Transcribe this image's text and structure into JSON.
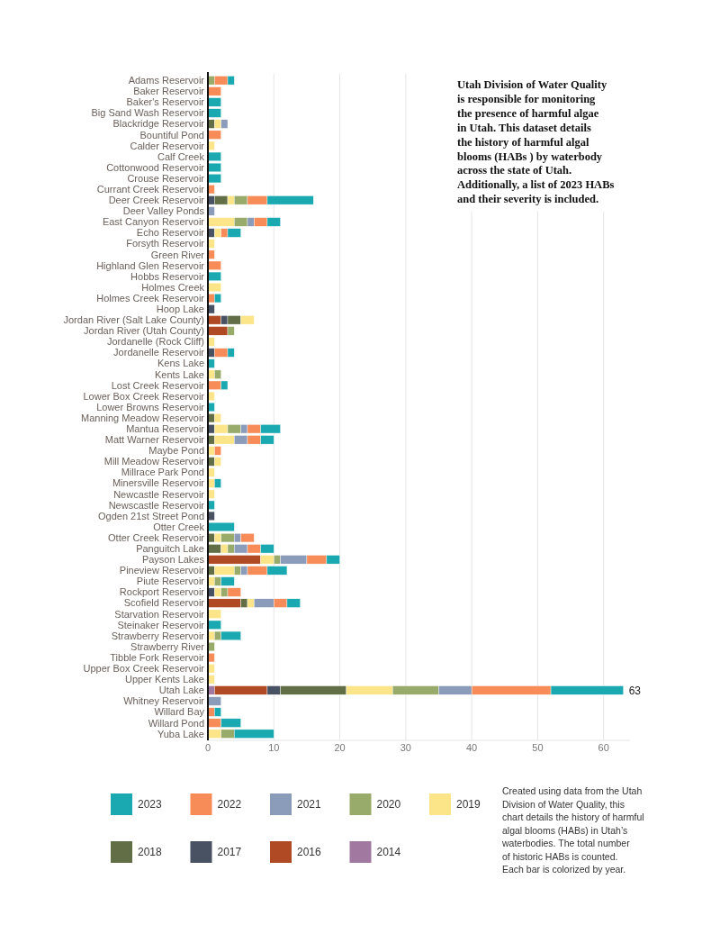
{
  "chart_data": {
    "type": "bar",
    "orientation": "horizontal",
    "stacked": true,
    "categories": [
      "Adams Reservoir",
      "Baker Reservoir",
      "Baker's Reservoir",
      "Big Sand Wash Reservoir",
      "Blackridge Reservoir",
      "Bountiful Pond",
      "Calder Reservoir",
      "Calf Creek",
      "Cottonwood Reservoir",
      "Crouse Reservoir",
      "Currant Creek Reservoir",
      "Deer Creek Reservoir",
      "Deer Valley Ponds",
      "East Canyon Reservoir",
      "Echo Reservoir",
      "Forsyth Reservoir",
      "Green River",
      "Highland Glen Reservoir",
      "Hobbs Reservoir",
      "Holmes Creek",
      "Holmes Creek Reservoir",
      "Hoop Lake",
      "Jordan River (Salt Lake County)",
      "Jordan River (Utah County)",
      "Jordanelle (Rock Cliff)",
      "Jordanelle Reservoir",
      "Kens Lake",
      "Kents Lake",
      "Lost Creek Reservoir",
      "Lower Box Creek Reservoir",
      "Lower Browns Reservoir",
      "Manning Meadow Reservoir",
      "Mantua Reservoir",
      "Matt Warner Reservoir",
      "Maybe Pond",
      "Mill Meadow Reservoir",
      "Millrace Park Pond",
      "Minersville Reservoir",
      "Newcastle Reservoir",
      "Newscastle Reservoir",
      "Ogden 21st Street Pond",
      "Otter Creek",
      "Otter Creek Reservoir",
      "Panguitch Lake",
      "Payson Lakes",
      "Pineview Reservoir",
      "Piute Reservoir",
      "Rockport Reservoir",
      "Scofield Reservoir",
      "Starvation Reservoir",
      "Steinaker Reservoir",
      "Strawberry Reservoir",
      "Strawberry River",
      "Tibble Fork Reservoir",
      "Upper Box Creek Reservoir",
      "Upper Kents Lake",
      "Utah Lake",
      "Whitney Reservoir",
      "Willard Bay",
      "Willard Pond",
      "Yuba Lake"
    ],
    "series": [
      {
        "name": "2014",
        "color": "#a178a0",
        "values": [
          null,
          null,
          null,
          null,
          null,
          null,
          null,
          null,
          null,
          null,
          null,
          null,
          null,
          null,
          null,
          null,
          null,
          null,
          null,
          null,
          null,
          null,
          null,
          null,
          null,
          null,
          null,
          null,
          null,
          null,
          null,
          null,
          null,
          null,
          null,
          null,
          null,
          null,
          null,
          null,
          null,
          null,
          null,
          null,
          null,
          null,
          null,
          null,
          null,
          null,
          null,
          null,
          null,
          null,
          null,
          null,
          1,
          null,
          null,
          null,
          null
        ]
      },
      {
        "name": "2016",
        "color": "#b04a24",
        "values": [
          null,
          null,
          null,
          null,
          null,
          null,
          null,
          null,
          null,
          null,
          null,
          null,
          null,
          null,
          null,
          null,
          null,
          null,
          null,
          null,
          null,
          null,
          2,
          3,
          null,
          null,
          null,
          null,
          null,
          null,
          null,
          null,
          null,
          null,
          null,
          null,
          null,
          null,
          null,
          null,
          null,
          null,
          null,
          null,
          8,
          null,
          null,
          null,
          5,
          null,
          null,
          null,
          null,
          null,
          null,
          null,
          8,
          null,
          null,
          null,
          null
        ]
      },
      {
        "name": "2017",
        "color": "#485263",
        "values": [
          null,
          null,
          null,
          null,
          null,
          null,
          null,
          null,
          null,
          null,
          null,
          1,
          null,
          null,
          1,
          null,
          null,
          null,
          null,
          null,
          null,
          1,
          1,
          null,
          null,
          1,
          null,
          null,
          null,
          null,
          null,
          null,
          1,
          null,
          null,
          null,
          null,
          null,
          null,
          null,
          1,
          null,
          null,
          null,
          null,
          null,
          null,
          1,
          null,
          null,
          null,
          null,
          null,
          null,
          null,
          null,
          2,
          null,
          null,
          null,
          null
        ]
      },
      {
        "name": "2018",
        "color": "#626e46",
        "values": [
          null,
          null,
          null,
          null,
          1,
          null,
          null,
          null,
          null,
          null,
          null,
          2,
          null,
          null,
          null,
          null,
          null,
          null,
          null,
          null,
          null,
          null,
          2,
          null,
          null,
          null,
          null,
          null,
          null,
          null,
          null,
          1,
          null,
          1,
          null,
          1,
          null,
          null,
          null,
          null,
          null,
          null,
          1,
          2,
          null,
          1,
          null,
          null,
          1,
          null,
          null,
          null,
          null,
          null,
          null,
          null,
          10,
          null,
          null,
          null,
          null
        ]
      },
      {
        "name": "2019",
        "color": "#fce588",
        "values": [
          null,
          null,
          null,
          null,
          1,
          null,
          1,
          null,
          null,
          null,
          null,
          1,
          null,
          4,
          1,
          1,
          null,
          null,
          null,
          2,
          null,
          null,
          2,
          null,
          1,
          null,
          null,
          1,
          null,
          1,
          null,
          1,
          2,
          3,
          1,
          1,
          1,
          1,
          1,
          null,
          null,
          null,
          1,
          1,
          2,
          3,
          1,
          1,
          1,
          2,
          null,
          1,
          null,
          null,
          1,
          1,
          7,
          null,
          null,
          null,
          2
        ]
      },
      {
        "name": "2020",
        "color": "#98ab6b",
        "values": [
          1,
          null,
          null,
          null,
          null,
          null,
          null,
          null,
          null,
          null,
          null,
          2,
          null,
          2,
          null,
          null,
          null,
          null,
          null,
          null,
          null,
          null,
          null,
          1,
          null,
          null,
          null,
          1,
          null,
          null,
          null,
          null,
          2,
          null,
          null,
          null,
          null,
          null,
          null,
          null,
          null,
          null,
          2,
          1,
          1,
          1,
          1,
          1,
          null,
          null,
          null,
          1,
          1,
          null,
          null,
          null,
          7,
          null,
          null,
          null,
          2
        ]
      },
      {
        "name": "2021",
        "color": "#8b9bba",
        "values": [
          null,
          null,
          null,
          null,
          1,
          null,
          null,
          null,
          null,
          null,
          null,
          null,
          1,
          1,
          null,
          null,
          null,
          null,
          null,
          null,
          null,
          null,
          null,
          null,
          null,
          null,
          null,
          null,
          null,
          null,
          null,
          null,
          1,
          2,
          null,
          null,
          null,
          null,
          null,
          null,
          null,
          null,
          1,
          2,
          4,
          1,
          null,
          null,
          3,
          null,
          null,
          null,
          null,
          null,
          null,
          null,
          5,
          2,
          null,
          null,
          null
        ]
      },
      {
        "name": "2022",
        "color": "#f78c59",
        "values": [
          2,
          2,
          null,
          null,
          null,
          2,
          null,
          null,
          null,
          null,
          1,
          3,
          null,
          2,
          1,
          null,
          1,
          2,
          null,
          null,
          1,
          null,
          null,
          null,
          null,
          2,
          null,
          null,
          2,
          null,
          null,
          null,
          2,
          2,
          1,
          null,
          null,
          null,
          null,
          null,
          null,
          null,
          2,
          2,
          3,
          3,
          null,
          2,
          2,
          null,
          null,
          null,
          null,
          1,
          null,
          null,
          12,
          null,
          1,
          2,
          null
        ]
      },
      {
        "name": "2023",
        "color": "#1aa9b0",
        "values": [
          1,
          null,
          2,
          2,
          null,
          null,
          null,
          2,
          2,
          2,
          null,
          7,
          null,
          2,
          2,
          null,
          null,
          null,
          2,
          null,
          1,
          null,
          null,
          null,
          null,
          1,
          1,
          null,
          1,
          null,
          1,
          null,
          3,
          2,
          null,
          null,
          null,
          1,
          null,
          1,
          null,
          4,
          null,
          2,
          2,
          3,
          2,
          null,
          2,
          null,
          2,
          3,
          null,
          null,
          null,
          null,
          11,
          null,
          1,
          3,
          6
        ]
      }
    ],
    "totals": [
      null,
      null,
      null,
      null,
      null,
      null,
      null,
      null,
      null,
      null,
      null,
      null,
      null,
      null,
      null,
      null,
      null,
      null,
      null,
      null,
      null,
      null,
      null,
      null,
      null,
      null,
      null,
      null,
      null,
      null,
      null,
      null,
      null,
      null,
      null,
      null,
      null,
      null,
      null,
      null,
      null,
      null,
      null,
      null,
      null,
      null,
      null,
      null,
      null,
      null,
      null,
      null,
      null,
      null,
      null,
      null,
      "63",
      null,
      null,
      null,
      null
    ],
    "xlim": [
      0,
      64
    ],
    "xticks": [
      0,
      10,
      20,
      30,
      40,
      50,
      60
    ],
    "grid": "x",
    "legend": "bottom",
    "annotations": [
      "Utah Division of Water Quality\nis responsible for monitoring\nthe presence of harmful algae\nin Utah. This dataset details\nthe history of harmful algal\nblooms (HABs ) by waterbody\nacross the state of Utah.\nAdditionally, a list of 2023 HABs\nand their severity is included.",
      "Created using data from the Utah\nDivision of Water Quality, this\nchart details the history of harmful\nalgal blooms (HABs) in Utah’s\nwaterbodies. The total number\nof historic HABs is counted.\nEach bar is colorized by year."
    ]
  }
}
